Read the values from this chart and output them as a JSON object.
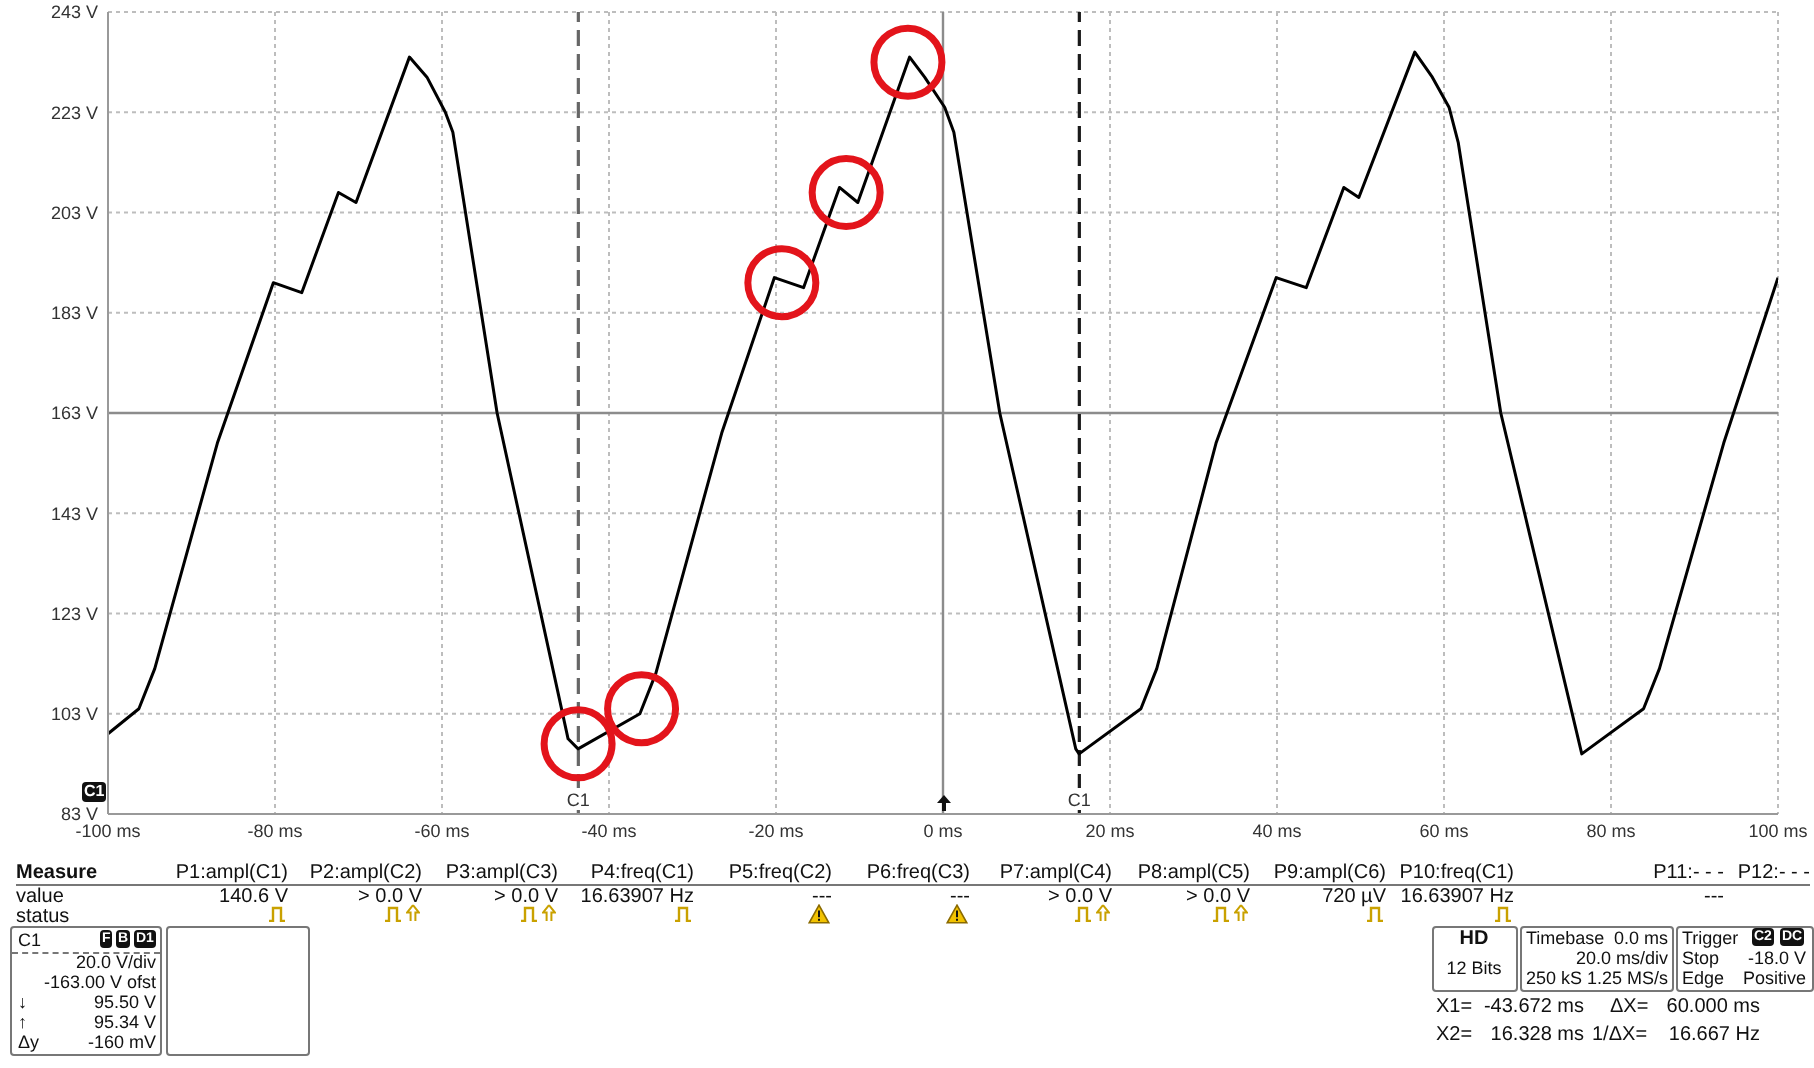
{
  "chart_data": {
    "type": "line",
    "xlim": [
      -100,
      100
    ],
    "xticks": [
      {
        "value": -100,
        "label": "-100 ms"
      },
      {
        "value": -80,
        "label": "-80 ms"
      },
      {
        "value": -60,
        "label": "-60 ms"
      },
      {
        "value": -40,
        "label": "-40 ms"
      },
      {
        "value": -20,
        "label": "-20 ms"
      },
      {
        "value": 0,
        "label": "0 ms"
      },
      {
        "value": 20,
        "label": "20 ms"
      },
      {
        "value": 40,
        "label": "40 ms"
      },
      {
        "value": 60,
        "label": "60 ms"
      },
      {
        "value": 80,
        "label": "80 ms"
      },
      {
        "value": 100,
        "label": "100 ms"
      }
    ],
    "ylim": [
      83,
      243
    ],
    "yticks": [
      {
        "value": 83,
        "label": "83 V"
      },
      {
        "value": 103,
        "label": "103 V"
      },
      {
        "value": 123,
        "label": "123 V"
      },
      {
        "value": 143,
        "label": "143 V"
      },
      {
        "value": 163,
        "label": "163 V"
      },
      {
        "value": 183,
        "label": "183 V"
      },
      {
        "value": 203,
        "label": "203 V"
      },
      {
        "value": 223,
        "label": "223 V"
      },
      {
        "value": 243,
        "label": "243 V"
      }
    ],
    "grid": true,
    "series": [
      {
        "type": "line",
        "color": "#000000",
        "x": [
          -100,
          -96.3,
          -94.4,
          -86.9,
          -80.2,
          -76.8,
          -72.4,
          -70.3,
          -63.9,
          -61.8,
          -59.6,
          -58.7,
          -53.4,
          -44.9,
          -43.7,
          -36.3,
          -34.4,
          -26.5,
          -20.2,
          -16.7,
          -12.4,
          -10.2,
          -4.0,
          -2.2,
          0.2,
          1.3,
          6.8,
          15.9,
          16.3,
          23.7,
          25.6,
          32.7,
          39.9,
          43.5,
          48.0,
          49.8,
          56.5,
          58.6,
          60.6,
          61.7,
          66.8,
          76.5,
          83.9,
          85.8,
          93.5,
          100
        ],
        "values": [
          99,
          104,
          112,
          157,
          189,
          187,
          207,
          205,
          234,
          230,
          223,
          219,
          163,
          98,
          96,
          103,
          111,
          159,
          190,
          188,
          208,
          205,
          234,
          230,
          224,
          219,
          163,
          96,
          95,
          104,
          112,
          157,
          190,
          188,
          208,
          206,
          235,
          230,
          224,
          217,
          163,
          95,
          104,
          112,
          157,
          190
        ]
      },
      {
        "type": "scatter",
        "color": "#e3141b",
        "marker": "circle",
        "x": [
          -43.7,
          -36.1,
          -19.3,
          -11.6,
          -4.2
        ],
        "values": [
          97,
          104,
          189,
          207,
          233
        ]
      }
    ],
    "ref_lines": [
      {
        "axis": "x",
        "value": -43.672,
        "label": "C1",
        "line_style": "dashed",
        "color": "#666666"
      },
      {
        "axis": "x",
        "value": 16.328,
        "label": "C1",
        "line_style": "dashed",
        "color": "#1a1a1a"
      }
    ],
    "annotations": [
      "C1",
      "Measure",
      "P1:ampl(C1)",
      "P2:ampl(C2)",
      "P3:ampl(C3)",
      "P4:freq(C1)",
      "P5:freq(C2)",
      "P6:freq(C3)",
      "P7:ampl(C4)",
      "P8:ampl(C5)",
      "P9:ampl(C6)",
      "P10:freq(C1)",
      "P11:- - -",
      "P12:- - -",
      "value",
      "140.6 V",
      "> 0.0 V",
      "> 0.0 V",
      "16.63907 Hz",
      "---",
      "---",
      "> 0.0 V",
      "> 0.0 V",
      "720 µV",
      "16.63907 Hz",
      "---",
      "status",
      "C1",
      "F",
      "B",
      "D1",
      "20.0 V/div",
      "-163.00 V ofst",
      "↓",
      "95.50 V",
      "↑",
      "95.34 V",
      "Δy",
      "-160 mV",
      "HD",
      "12 Bits",
      "Timebase",
      "0.0 ms",
      "20.0 ms/div",
      "250 kS",
      "1.25 MS/s",
      "Trigger",
      "C2",
      "DC",
      "Stop",
      "-18.0 V",
      "Edge",
      "Positive",
      "X1=",
      "-43.672 ms",
      "ΔX=",
      "60.000 ms",
      "X2=",
      "16.328 ms",
      "1/ΔX=",
      "16.667 Hz"
    ]
  }
}
